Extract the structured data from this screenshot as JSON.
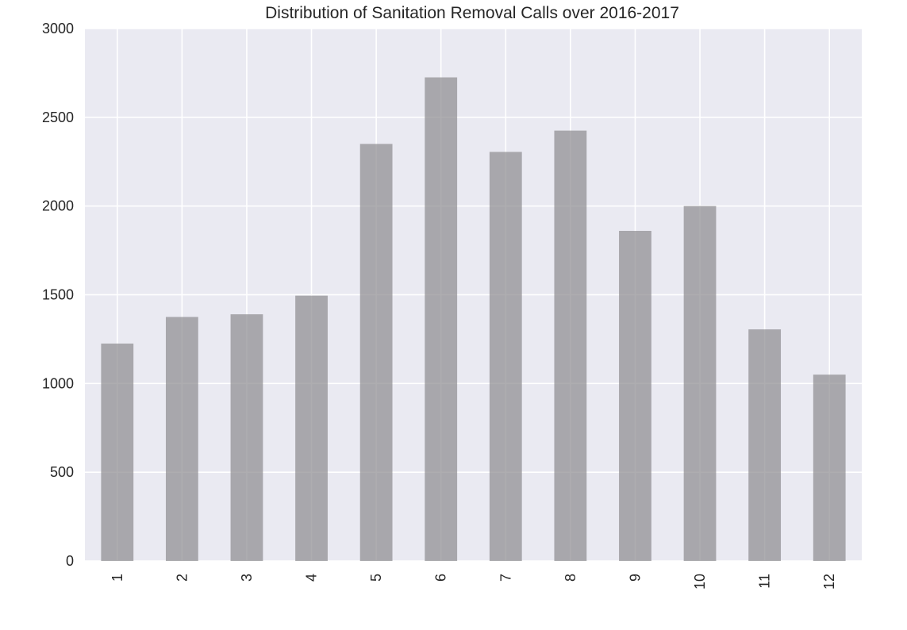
{
  "chart_data": {
    "type": "bar",
    "title": "Distribution of Sanitation Removal Calls over 2016-2017",
    "xlabel": "",
    "ylabel": "",
    "categories": [
      "1",
      "2",
      "3",
      "4",
      "5",
      "6",
      "7",
      "8",
      "9",
      "10",
      "11",
      "12"
    ],
    "values": [
      1225,
      1375,
      1390,
      1495,
      2350,
      2725,
      2305,
      2425,
      1860,
      2000,
      1305,
      1050
    ],
    "ylim": [
      0,
      3000
    ],
    "yticks": [
      "0",
      "500",
      "1000",
      "1500",
      "2000",
      "2500",
      "3000"
    ],
    "grid": true,
    "bar_color": "#8c8a8f",
    "background_color": "#eaeaf2",
    "legend": "none"
  }
}
